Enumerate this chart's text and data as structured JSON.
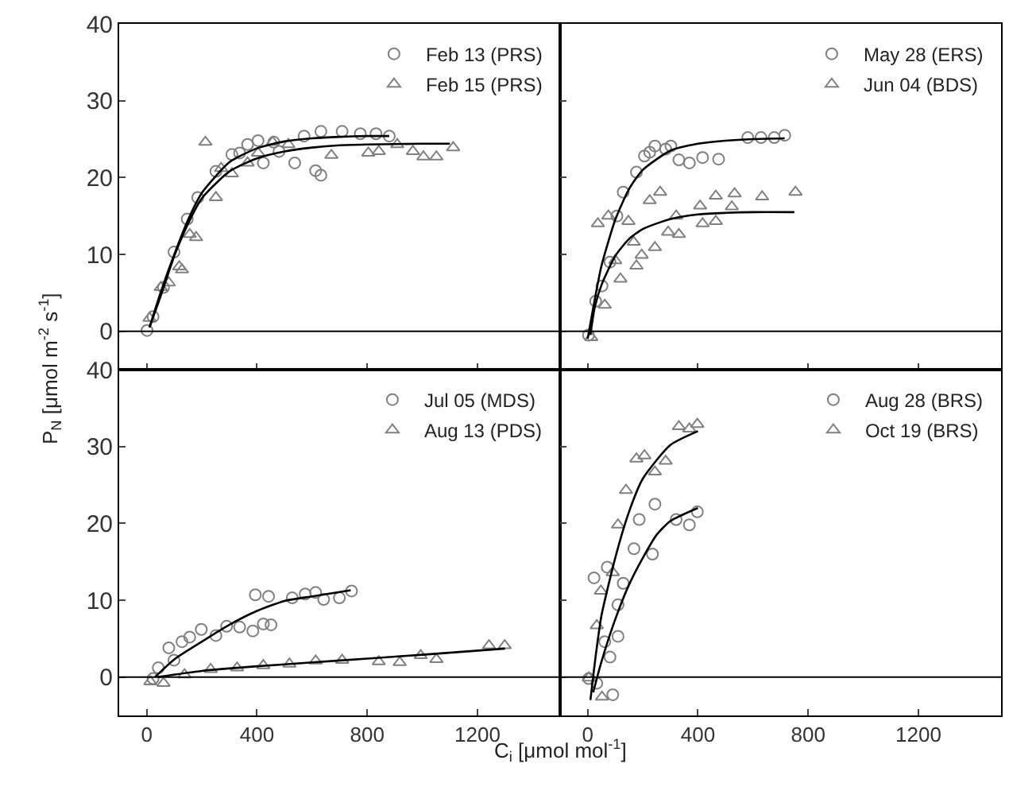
{
  "chart_data": [
    {
      "type": "scatter",
      "ylabel": "P$_{N}$ [μmol m$^{-2}$ s$^{-1}$]",
      "xlim": [
        -100,
        1500
      ],
      "ylim": [
        -5,
        40
      ],
      "xticks": [
        0,
        400,
        800,
        1200
      ],
      "yticks": [
        0,
        10,
        20,
        30,
        40
      ],
      "tick_labels": "y",
      "legend": "top right",
      "ref_lines": [
        {
          "axis": "y",
          "value": 0,
          "color": "#000000"
        }
      ],
      "series": [
        {
          "name": "Feb 13 (PRS)",
          "type": "scatter",
          "marker": "circle",
          "color": "#808080",
          "x": [
            1,
            23,
            61,
            99,
            147,
            185,
            251,
            309,
            366,
            404,
            480,
            537,
            571,
            613,
            632,
            632,
            709,
            775,
            832,
            880,
            461,
            337,
            423
          ],
          "values": [
            0.1,
            1.9,
            5.7,
            10.3,
            14.6,
            17.4,
            20.8,
            23,
            24.3,
            24.8,
            23.4,
            21.9,
            25.4,
            20.9,
            20.3,
            26,
            26,
            25.7,
            25.7,
            25.4,
            24.6,
            23.2,
            21.9
          ]
        },
        {
          "name": "Feb 15 (PRS)",
          "type": "scatter",
          "marker": "triangle",
          "color": "#808080",
          "x": [
            10,
            51,
            80,
            118,
            128,
            156,
            179,
            213,
            251,
            309,
            366,
            457,
            514,
            670,
            804,
            842,
            909,
            966,
            1004,
            1051,
            1112,
            404,
            270
          ],
          "values": [
            1.7,
            5.7,
            6.3,
            8.4,
            8,
            12.6,
            12.2,
            24.6,
            17.4,
            20.5,
            21.9,
            24.6,
            24.3,
            22.9,
            23.2,
            23.4,
            24.3,
            23.4,
            22.7,
            22.7,
            23.9,
            23.2,
            21.2
          ]
        },
        {
          "type": "line",
          "marker": "none",
          "color": "#000000",
          "x": [
            10,
            50,
            100,
            150,
            200,
            300,
            400,
            500,
            600,
            700,
            800,
            880
          ],
          "values": [
            0.5,
            5,
            10,
            14.5,
            18,
            22,
            23.8,
            24.7,
            25.1,
            25.3,
            25.4,
            25.4
          ]
        },
        {
          "type": "line",
          "marker": "none",
          "color": "#000000",
          "x": [
            10,
            50,
            100,
            150,
            200,
            300,
            400,
            500,
            600,
            700,
            800,
            1000,
            1100
          ],
          "values": [
            0.5,
            4.5,
            9.8,
            14,
            17.3,
            20.8,
            22.5,
            23.4,
            23.9,
            24.2,
            24.3,
            24.4,
            24.4
          ]
        }
      ]
    },
    {
      "type": "scatter",
      "xlim": [
        -100,
        1500
      ],
      "ylim": [
        -5,
        40
      ],
      "xticks": [
        0,
        400,
        800,
        1200
      ],
      "yticks": [
        0,
        10,
        20,
        30,
        40
      ],
      "tick_labels": false,
      "legend": "top right",
      "ref_lines": [
        {
          "axis": "y",
          "value": 0,
          "color": "#000000"
        }
      ],
      "series": [
        {
          "name": "May 28 (ERS)",
          "type": "scatter",
          "marker": "circle",
          "color": "#808080",
          "x": [
            3,
            29,
            52,
            81,
            106,
            129,
            177,
            206,
            244,
            283,
            302,
            331,
            369,
            417,
            475,
            581,
            629,
            677,
            715,
            225
          ],
          "values": [
            -0.5,
            3.9,
            5.9,
            9,
            15,
            18.1,
            20.7,
            22.8,
            24.1,
            23.7,
            24.1,
            22.3,
            21.9,
            22.6,
            22.4,
            25.2,
            25.2,
            25.2,
            25.5,
            23.3
          ]
        },
        {
          "name": "Jun 04 (BDS)",
          "type": "scatter",
          "marker": "triangle",
          "color": "#808080",
          "x": [
            13,
            62,
            37,
            75,
            100,
            119,
            148,
            167,
            177,
            196,
            225,
            263,
            292,
            321,
            331,
            408,
            417,
            465,
            465,
            523,
            533,
            633,
            754,
            244
          ],
          "values": [
            -0.8,
            3.4,
            14,
            15,
            9.2,
            6.8,
            14.3,
            11.6,
            8.5,
            9.9,
            17,
            18.1,
            12.9,
            15,
            12.6,
            16.3,
            14,
            14.3,
            17.6,
            16.2,
            17.9,
            17.5,
            18.1,
            10.9
          ]
        },
        {
          "type": "line",
          "marker": "none",
          "color": "#000000",
          "x": [
            0,
            25,
            50,
            100,
            150,
            200,
            300,
            400,
            500,
            600,
            715
          ],
          "values": [
            -1,
            4,
            8.5,
            14.5,
            18.5,
            21,
            23.5,
            24.4,
            24.8,
            25,
            25.1
          ]
        },
        {
          "type": "line",
          "marker": "none",
          "color": "#000000",
          "x": [
            10,
            25,
            50,
            100,
            150,
            200,
            300,
            400,
            500,
            600,
            750
          ],
          "values": [
            -0.5,
            3,
            6,
            9.8,
            12,
            13.3,
            14.6,
            15.2,
            15.4,
            15.5,
            15.5
          ]
        }
      ]
    },
    {
      "type": "scatter",
      "xlabel": "C$_{i}$ [μmol mol$^{-1}$]",
      "xlim": [
        -100,
        1500
      ],
      "ylim": [
        -5,
        40
      ],
      "xticks": [
        0,
        400,
        800,
        1200
      ],
      "yticks": [
        0,
        10,
        20,
        30,
        40
      ],
      "legend": "top right",
      "ref_lines": [
        {
          "axis": "y",
          "value": 0,
          "color": "#000000"
        }
      ],
      "series": [
        {
          "name": "Jul 05 (MDS)",
          "type": "scatter",
          "marker": "circle",
          "color": "#808080",
          "x": [
            23,
            42,
            80,
            128,
            156,
            198,
            251,
            290,
            337,
            385,
            423,
            451,
            394,
            442,
            528,
            575,
            613,
            642,
            699,
            743,
            99
          ],
          "values": [
            -0.2,
            1.2,
            3.8,
            4.6,
            5.2,
            6.2,
            5.4,
            6.6,
            6.5,
            6,
            6.9,
            6.8,
            10.7,
            10.5,
            10.3,
            10.8,
            11,
            10.1,
            10.3,
            11.2,
            2.2
          ]
        },
        {
          "name": "Aug 13 (PDS)",
          "type": "scatter",
          "marker": "triangle",
          "color": "#808080",
          "x": [
            13,
            61,
            137,
            232,
            328,
            423,
            518,
            613,
            709,
            842,
            918,
            994,
            1051,
            1242,
            1299
          ],
          "values": [
            -0.6,
            -0.8,
            0.3,
            1,
            1.2,
            1.5,
            1.7,
            2.1,
            2.2,
            2,
            1.9,
            2.8,
            2.3,
            4.1,
            4.1
          ]
        },
        {
          "type": "line",
          "marker": "none",
          "color": "#000000",
          "x": [
            30,
            100,
            200,
            300,
            400,
            500,
            600,
            740
          ],
          "values": [
            0,
            2.3,
            4.6,
            6.8,
            8.6,
            9.9,
            10.5,
            11.3
          ]
        },
        {
          "type": "line",
          "marker": "none",
          "color": "#000000",
          "x": [
            40,
            200,
            400,
            600,
            800,
            1000,
            1300
          ],
          "values": [
            0,
            0.8,
            1.4,
            1.9,
            2.4,
            2.9,
            3.7
          ]
        }
      ]
    },
    {
      "type": "scatter",
      "xlim": [
        -100,
        1500
      ],
      "ylim": [
        -5,
        40
      ],
      "xticks": [
        0,
        400,
        800,
        1200
      ],
      "yticks": [
        0,
        10,
        20,
        30,
        40
      ],
      "tick_labels": "x",
      "legend": "top right",
      "ref_lines": [
        {
          "axis": "y",
          "value": 0,
          "color": "#000000"
        }
      ],
      "series": [
        {
          "name": "Aug 28 (BRS)",
          "type": "scatter",
          "marker": "circle",
          "color": "#808080",
          "x": [
            4,
            33,
            91,
            23,
            62,
            81,
            110,
            71,
            110,
            129,
            168,
            187,
            235,
            244,
            321,
            369,
            398
          ],
          "values": [
            -0.2,
            -0.8,
            -2.3,
            12.9,
            4.6,
            2.6,
            5.3,
            14.3,
            9.4,
            12.2,
            16.7,
            20.5,
            16,
            22.5,
            20.5,
            19.8,
            21.5
          ]
        },
        {
          "name": "Oct 19 (BRS)",
          "type": "scatter",
          "marker": "triangle",
          "color": "#808080",
          "x": [
            4,
            52,
            33,
            48,
            91,
            110,
            139,
            177,
            206,
            244,
            283,
            331,
            369,
            398
          ],
          "values": [
            -0.1,
            -2.6,
            6.7,
            11.2,
            13.6,
            19.8,
            24.3,
            28.4,
            28.8,
            26.7,
            28.1,
            32.6,
            32.3,
            32.9
          ]
        },
        {
          "type": "line",
          "marker": "none",
          "color": "#000000",
          "x": [
            20,
            50,
            100,
            150,
            200,
            250,
            300,
            400
          ],
          "values": [
            -2,
            2,
            7.5,
            12,
            15.5,
            18.5,
            20.3,
            22
          ]
        },
        {
          "type": "line",
          "marker": "none",
          "color": "#000000",
          "x": [
            10,
            30,
            50,
            100,
            150,
            200,
            300,
            400
          ],
          "values": [
            -3,
            3,
            8,
            15.5,
            21.5,
            25.8,
            30.2,
            32
          ]
        }
      ]
    }
  ]
}
